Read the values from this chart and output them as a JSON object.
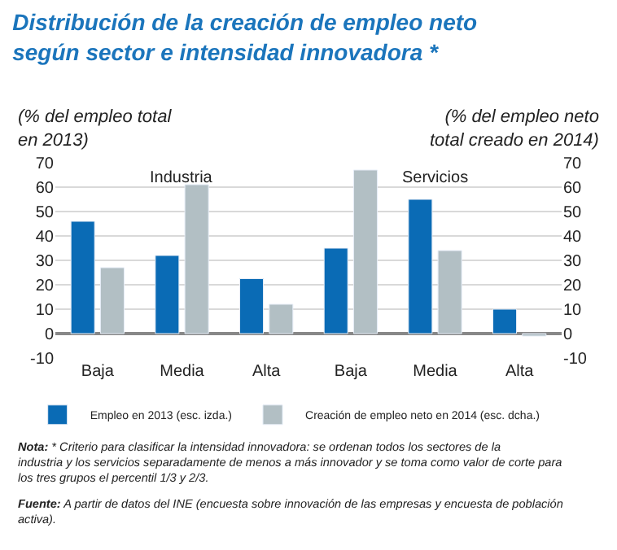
{
  "chart_data": {
    "type": "bar",
    "title": "Distribución de la creación de empleo neto según sector e intensidad innovadora *",
    "ylabel": "(% del empleo total en 2013)",
    "y2label": "(% del empleo neto total creado en 2014)",
    "categories": [
      "Baja",
      "Media",
      "Alta",
      "Baja",
      "Media",
      "Alta"
    ],
    "series": [
      {
        "name": "Empleo en 2013 (esc. izda.)",
        "color": "#0a6bb5",
        "values": [
          46,
          32,
          22.5,
          35,
          55,
          10
        ]
      },
      {
        "name": "Creación de empleo neto en 2014 (esc. dcha.)",
        "color": "#b2bfc4",
        "values": [
          27,
          61,
          12,
          67,
          34,
          -1
        ],
        "axis": "y2"
      }
    ],
    "ylim": [
      -10,
      70
    ],
    "yticks": [
      -10,
      0,
      10,
      20,
      30,
      40,
      50,
      60,
      70
    ],
    "y2lim": [
      -10,
      70
    ],
    "y2ticks": [
      -10,
      0,
      10,
      20,
      30,
      40,
      50,
      60,
      70
    ],
    "grid": "y",
    "legend": "bottom",
    "annotations": [
      "Industria",
      "Servicios",
      "Nota: * Criterio para clasificar la intensidad innovadora: se ordenan todos los sectores de la industria y los servicios separadamente de menos a más innovador y se toma como valor de corte para los tres grupos el percentil 1/3 y 2/3.",
      "Fuente: A partir de datos del INE (encuesta sobre innovación de las empresas y encuesta de población activa)."
    ]
  }
}
